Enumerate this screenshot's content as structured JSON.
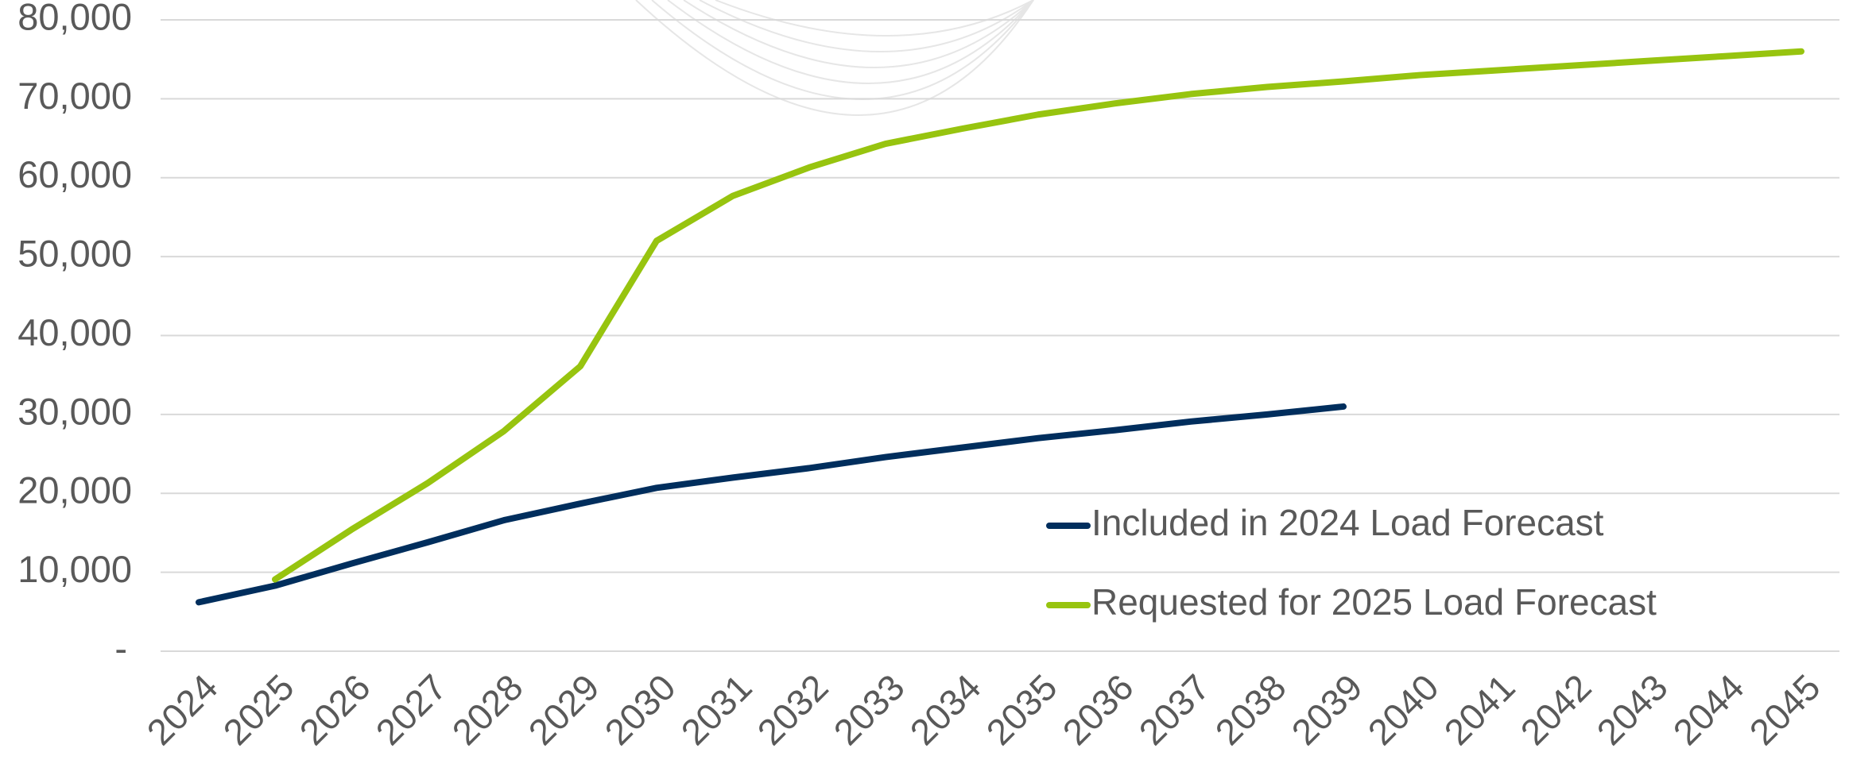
{
  "chart_data": {
    "type": "line",
    "categories": [
      "2024",
      "2025",
      "2026",
      "2027",
      "2028",
      "2029",
      "2030",
      "2031",
      "2032",
      "2033",
      "2034",
      "2035",
      "2036",
      "2037",
      "2038",
      "2039",
      "2040",
      "2041",
      "2042",
      "2043",
      "2044",
      "2045"
    ],
    "series": [
      {
        "name": "Included in 2024 Load Forecast",
        "color": "#002e5d",
        "values": [
          6200,
          8300,
          11100,
          13800,
          16600,
          18700,
          20700,
          22000,
          23200,
          24600,
          25800,
          27000,
          28000,
          29100,
          30000,
          31000,
          null,
          null,
          null,
          null,
          null,
          null
        ]
      },
      {
        "name": "Requested for 2025 Load Forecast",
        "color": "#97c40f",
        "values": [
          null,
          9100,
          15400,
          21300,
          27900,
          36100,
          52000,
          57700,
          61300,
          64300,
          66200,
          68000,
          69400,
          70600,
          71500,
          72200,
          73000,
          73600,
          74200,
          74800,
          75400,
          76000
        ]
      }
    ],
    "ylim": [
      0,
      80000
    ],
    "yticks": [
      {
        "value": 0,
        "label": "-"
      },
      {
        "value": 10000,
        "label": "10,000"
      },
      {
        "value": 20000,
        "label": "20,000"
      },
      {
        "value": 30000,
        "label": "30,000"
      },
      {
        "value": 40000,
        "label": "40,000"
      },
      {
        "value": 50000,
        "label": "50,000"
      },
      {
        "value": 60000,
        "label": "60,000"
      },
      {
        "value": 70000,
        "label": "70,000"
      },
      {
        "value": 80000,
        "label": "80,000"
      }
    ],
    "grid": true
  }
}
